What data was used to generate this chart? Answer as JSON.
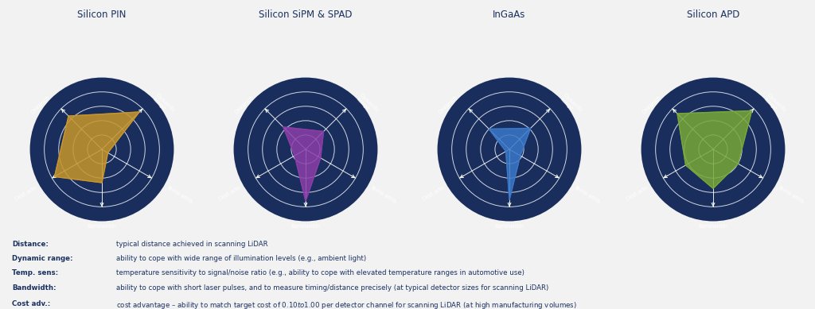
{
  "charts": [
    {
      "title": "Silicon PIN",
      "color": "#C8962A",
      "alpha": 0.85,
      "values": [
        0.82,
        0.92,
        0.12,
        0.58,
        0.95
      ]
    },
    {
      "title": "Silicon SiPM & SPAD",
      "color": "#8B3EA8",
      "alpha": 0.85,
      "values": [
        0.55,
        0.44,
        0.3,
        0.9,
        0.22
      ]
    },
    {
      "title": "InGaAs",
      "color": "#3A78C9",
      "alpha": 0.85,
      "values": [
        0.5,
        0.52,
        0.22,
        0.88,
        0.07
      ]
    },
    {
      "title": "Silicon APD",
      "color": "#78A838",
      "alpha": 0.85,
      "values": [
        0.88,
        0.95,
        0.5,
        0.68,
        0.55
      ]
    }
  ],
  "categories": [
    "Distance",
    "Dynamic\nrange",
    "Temp sens.",
    "Bandwidth",
    "Cost adv."
  ],
  "angles_deg": [
    135,
    45,
    330,
    270,
    210
  ],
  "bg_color": "#1A2E5E",
  "grid_color": "#FFFFFF",
  "text_color": "#FFFFFF",
  "title_color": "#1A3060",
  "n_rings": 4,
  "figure_bg": "#F2F2F2",
  "legend_items": [
    {
      "label": "Distance:",
      "desc": "typical distance achieved in scanning LiDAR"
    },
    {
      "label": "Dynamic range:",
      "desc": "ability to cope with wide range of illumination levels (e.g., ambient light)"
    },
    {
      "label": "Temp. sens:",
      "desc": "temperature sensitivity to signal/noise ratio (e.g., ability to cope with elevated temperature ranges in automotive use)"
    },
    {
      "label": "Bandwidth:",
      "desc": "ability to cope with short laser pulses, and to measure timing/distance precisely (at typical detector sizes for scanning LiDAR)"
    },
    {
      "label": "Cost adv.:",
      "desc": "cost advantage – ability to match target cost of $0.10 to $1.00 per detector channel for scanning LiDAR (at high manufacturing volumes)"
    }
  ]
}
